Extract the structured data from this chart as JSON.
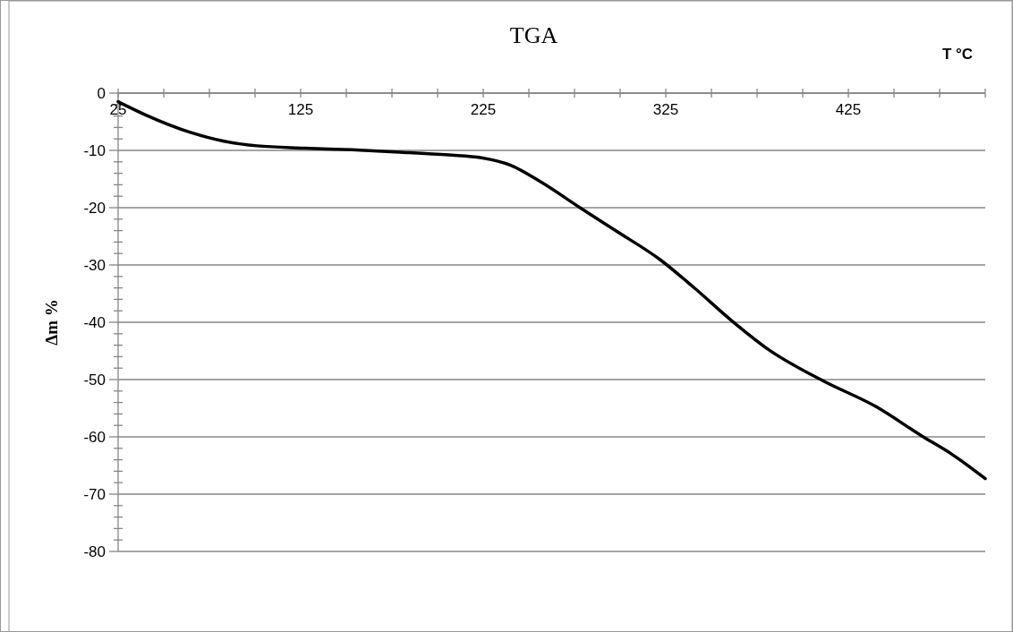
{
  "chart_data": {
    "type": "line",
    "title": "TGA",
    "xlabel": "T °C",
    "ylabel": "Δm %",
    "xlim": [
      25,
      500
    ],
    "ylim": [
      -80,
      0
    ],
    "xticks": [
      25,
      {
        "value": 50,
        "label": null
      },
      {
        "value": 75,
        "label": null
      },
      {
        "value": 100,
        "label": null
      },
      125,
      {
        "value": 150,
        "label": null
      },
      {
        "value": 175,
        "label": null
      },
      {
        "value": 200,
        "label": null
      },
      225,
      {
        "value": 250,
        "label": null
      },
      {
        "value": 275,
        "label": null
      },
      {
        "value": 300,
        "label": null
      },
      325,
      {
        "value": 350,
        "label": null
      },
      {
        "value": 375,
        "label": null
      },
      {
        "value": 400,
        "label": null
      },
      425,
      {
        "value": 450,
        "label": null
      },
      {
        "value": 475,
        "label": null
      },
      {
        "value": 500,
        "label": null
      }
    ],
    "yticks": [
      -80,
      {
        "value": -78,
        "label": null
      },
      {
        "value": -76,
        "label": null
      },
      {
        "value": -74,
        "label": null
      },
      {
        "value": -72,
        "label": null
      },
      -70,
      {
        "value": -68,
        "label": null
      },
      {
        "value": -66,
        "label": null
      },
      {
        "value": -64,
        "label": null
      },
      {
        "value": -62,
        "label": null
      },
      -60,
      {
        "value": -58,
        "label": null
      },
      {
        "value": -56,
        "label": null
      },
      {
        "value": -54,
        "label": null
      },
      {
        "value": -52,
        "label": null
      },
      -50,
      {
        "value": -48,
        "label": null
      },
      {
        "value": -46,
        "label": null
      },
      {
        "value": -44,
        "label": null
      },
      {
        "value": -42,
        "label": null
      },
      -40,
      {
        "value": -38,
        "label": null
      },
      {
        "value": -36,
        "label": null
      },
      {
        "value": -34,
        "label": null
      },
      {
        "value": -32,
        "label": null
      },
      -30,
      {
        "value": -28,
        "label": null
      },
      {
        "value": -26,
        "label": null
      },
      {
        "value": -24,
        "label": null
      },
      {
        "value": -22,
        "label": null
      },
      -20,
      {
        "value": -18,
        "label": null
      },
      {
        "value": -16,
        "label": null
      },
      {
        "value": -14,
        "label": null
      },
      {
        "value": -12,
        "label": null
      },
      -10,
      {
        "value": -8,
        "label": null
      },
      {
        "value": -6,
        "label": null
      },
      {
        "value": -4,
        "label": null
      },
      {
        "value": -2,
        "label": null
      },
      0
    ],
    "grid": "y",
    "marker": "none",
    "line_style": "solid",
    "series": [
      {
        "color": "#000000",
        "x": [
          25,
          40,
          65,
          83,
          101,
          127,
          153,
          179,
          206,
          224,
          240,
          257,
          278,
          298,
          322,
          341,
          361,
          381,
          411,
          440,
          465,
          482,
          500
        ],
        "values": [
          -1.5,
          -3.8,
          -6.9,
          -8.4,
          -9.2,
          -9.6,
          -9.9,
          -10.3,
          -10.8,
          -11.3,
          -12.6,
          -15.6,
          -20,
          -24.1,
          -29.1,
          -34.1,
          -39.7,
          -44.7,
          -50.2,
          -54.7,
          -59.8,
          -63.1,
          -67.3
        ]
      }
    ]
  }
}
